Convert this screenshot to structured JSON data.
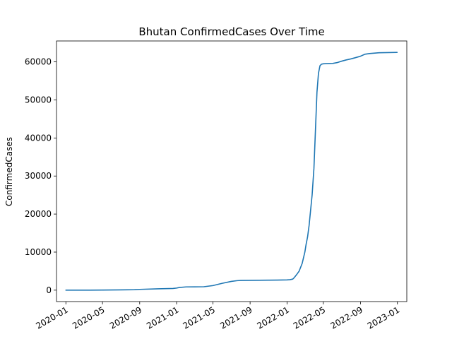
{
  "chart_data": {
    "type": "line",
    "title": "Bhutan  ConfirmedCases Over Time",
    "xlabel": "",
    "ylabel": "ConfirmedCases",
    "grid": false,
    "legend": "none",
    "xlim": [
      "2019-12-01",
      "2023-02-01"
    ],
    "ylim": [
      -3000,
      65500
    ],
    "x_ticks": [
      "2020-01",
      "2020-05",
      "2020-09",
      "2021-01",
      "2021-05",
      "2021-09",
      "2022-01",
      "2022-05",
      "2022-09",
      "2023-01"
    ],
    "y_ticks": [
      0,
      10000,
      20000,
      30000,
      40000,
      50000,
      60000
    ],
    "series": [
      {
        "color": "#1f77b4",
        "x": [
          "2020-01-01",
          "2020-03-01",
          "2020-05-01",
          "2020-07-01",
          "2020-08-15",
          "2020-09-01",
          "2020-11-01",
          "2020-12-20",
          "2021-01-01",
          "2021-01-10",
          "2021-02-01",
          "2021-03-01",
          "2021-04-01",
          "2021-05-01",
          "2021-06-01",
          "2021-07-01",
          "2021-07-20",
          "2021-08-01",
          "2021-09-01",
          "2021-10-01",
          "2021-11-01",
          "2021-12-01",
          "2022-01-01",
          "2022-01-10",
          "2022-01-20",
          "2022-01-25",
          "2022-02-01",
          "2022-02-10",
          "2022-02-20",
          "2022-03-01",
          "2022-03-05",
          "2022-03-10",
          "2022-03-15",
          "2022-03-20",
          "2022-03-25",
          "2022-03-31",
          "2022-04-05",
          "2022-04-10",
          "2022-04-15",
          "2022-04-20",
          "2022-04-25",
          "2022-05-01",
          "2022-05-15",
          "2022-06-01",
          "2022-06-15",
          "2022-07-01",
          "2022-07-15",
          "2022-08-01",
          "2022-08-15",
          "2022-09-01",
          "2022-09-15",
          "2022-10-01",
          "2022-11-01",
          "2022-12-01",
          "2022-12-31"
        ],
        "y": [
          0,
          5,
          20,
          80,
          120,
          200,
          350,
          450,
          550,
          700,
          850,
          860,
          900,
          1200,
          1800,
          2300,
          2500,
          2550,
          2580,
          2600,
          2620,
          2650,
          2700,
          2750,
          2900,
          3300,
          4000,
          5000,
          7000,
          10000,
          12000,
          14000,
          17000,
          21000,
          25000,
          32000,
          42000,
          52000,
          57000,
          59000,
          59400,
          59500,
          59550,
          59600,
          59800,
          60200,
          60500,
          60800,
          61100,
          61500,
          62000,
          62200,
          62400,
          62450,
          62500
        ]
      }
    ]
  }
}
